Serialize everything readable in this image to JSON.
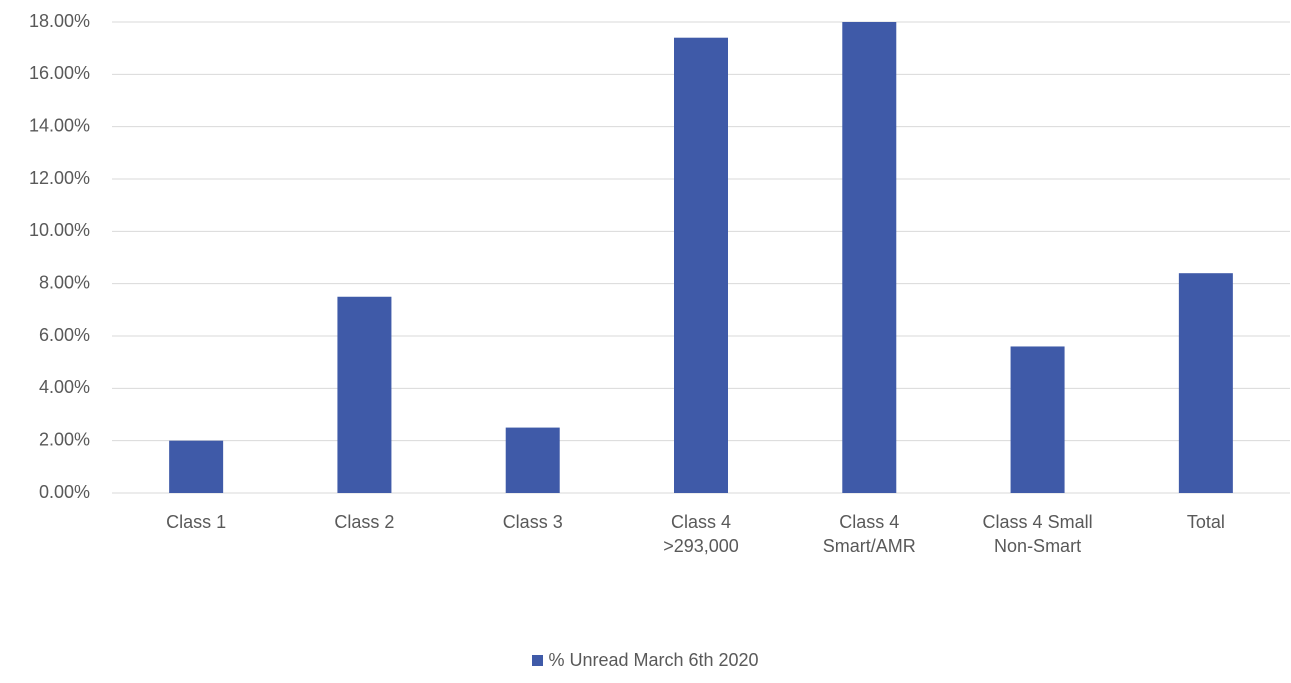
{
  "chart_data": {
    "type": "bar",
    "categories": [
      "Class 1",
      "Class 2",
      "Class 3",
      "Class 4 >293,000",
      "Class 4 Smart/AMR",
      "Class 4 Small Non-Smart",
      "Total"
    ],
    "series": [
      {
        "name": "% Unread March 6th 2020",
        "color": "#3f5aa8",
        "values": [
          2.0,
          7.5,
          2.5,
          17.4,
          18.0,
          5.6,
          8.4
        ]
      }
    ],
    "ylim": [
      0,
      18
    ],
    "yticks": [
      {
        "value": 0,
        "label": "0.00%"
      },
      {
        "value": 2,
        "label": "2.00%"
      },
      {
        "value": 4,
        "label": "4.00%"
      },
      {
        "value": 6,
        "label": "6.00%"
      },
      {
        "value": 8,
        "label": "8.00%"
      },
      {
        "value": 10,
        "label": "10.00%"
      },
      {
        "value": 12,
        "label": "12.00%"
      },
      {
        "value": 14,
        "label": "14.00%"
      },
      {
        "value": 16,
        "label": "16.00%"
      },
      {
        "value": 18,
        "label": "18.00%"
      }
    ],
    "grid": true,
    "legend": "bottom"
  }
}
